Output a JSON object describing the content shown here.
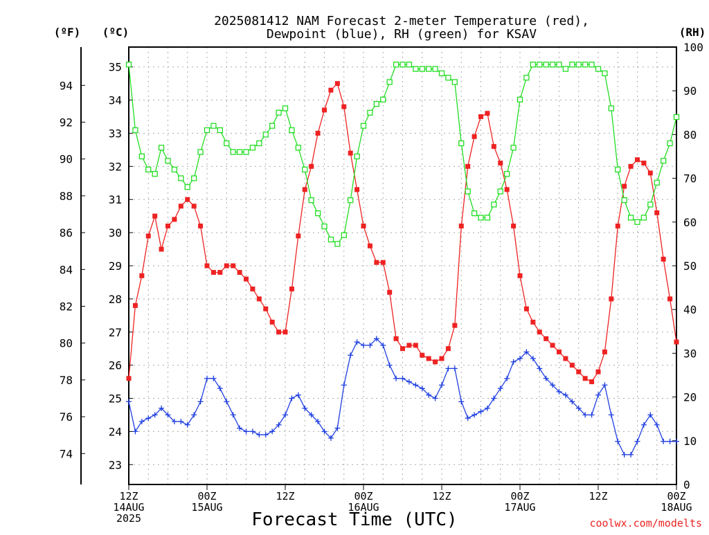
{
  "chart_data": {
    "type": "line",
    "title": "2025081412 NAM Forecast 2-meter Temperature (red),",
    "subtitle": "Dewpoint (blue), RH (green) for KSAV",
    "xlabel": "Forecast Time (UTC)",
    "unit_labels": {
      "fahrenheit": "(ºF)",
      "celsius": "(ºC)",
      "rh": "(RH)"
    },
    "credit": "coolwx.com/modelts",
    "x_ticks": [
      {
        "hour": 0,
        "lines": [
          "12Z",
          "14AUG",
          "2025"
        ]
      },
      {
        "hour": 12,
        "lines": [
          "00Z",
          "15AUG"
        ]
      },
      {
        "hour": 24,
        "lines": [
          "12Z"
        ]
      },
      {
        "hour": 36,
        "lines": [
          "00Z",
          "16AUG"
        ]
      },
      {
        "hour": 48,
        "lines": [
          "12Z"
        ]
      },
      {
        "hour": 60,
        "lines": [
          "00Z",
          "17AUG"
        ]
      },
      {
        "hour": 72,
        "lines": [
          "12Z"
        ]
      },
      {
        "hour": 84,
        "lines": [
          "00Z",
          "18AUG"
        ]
      }
    ],
    "xlim": [
      0,
      84
    ],
    "ylim_celsius": [
      22.4,
      35.6
    ],
    "y_ticks_celsius": [
      23,
      24,
      25,
      26,
      27,
      28,
      29,
      30,
      31,
      32,
      33,
      34,
      35
    ],
    "y_ticks_fahrenheit": [
      74,
      76,
      78,
      80,
      82,
      84,
      86,
      88,
      90,
      92,
      94
    ],
    "ylim_rh": [
      0,
      100
    ],
    "y_ticks_rh": [
      0,
      10,
      20,
      30,
      40,
      50,
      60,
      70,
      80,
      90,
      100
    ],
    "grid": true,
    "colors": {
      "temperature": "#ee2222",
      "dewpoint": "#1e3ee0",
      "rh": "#22dd22",
      "grid": "#aaaaaa",
      "credit": "#ee2222"
    },
    "series": [
      {
        "name": "Temperature",
        "axis": "celsius",
        "marker": "filled-square",
        "x": [
          0,
          1,
          2,
          3,
          4,
          5,
          6,
          7,
          8,
          9,
          10,
          11,
          12,
          13,
          14,
          15,
          16,
          17,
          18,
          19,
          20,
          21,
          22,
          23,
          24,
          25,
          26,
          27,
          28,
          29,
          30,
          31,
          32,
          33,
          34,
          35,
          36,
          37,
          38,
          39,
          40,
          41,
          42,
          43,
          44,
          45,
          46,
          47,
          48,
          49,
          50,
          51,
          52,
          53,
          54,
          55,
          56,
          57,
          58,
          59,
          60,
          61,
          62,
          63,
          64,
          65,
          66,
          67,
          68,
          69,
          70,
          71,
          72,
          73,
          74,
          75,
          76,
          77,
          78,
          79,
          80,
          81,
          82,
          83,
          84
        ],
        "values": [
          25.6,
          27.8,
          28.7,
          29.9,
          30.5,
          29.5,
          30.2,
          30.4,
          30.8,
          31.0,
          30.8,
          30.2,
          29.0,
          28.8,
          28.8,
          29.0,
          29.0,
          28.8,
          28.6,
          28.3,
          28.0,
          27.7,
          27.3,
          27.0,
          27.0,
          28.3,
          29.9,
          31.3,
          32.0,
          33.0,
          33.7,
          34.3,
          34.5,
          33.8,
          32.4,
          31.3,
          30.2,
          29.6,
          29.1,
          29.1,
          28.2,
          26.8,
          26.5,
          26.6,
          26.6,
          26.3,
          26.2,
          26.1,
          26.2,
          26.5,
          27.2,
          30.2,
          32.0,
          32.9,
          33.5,
          33.6,
          32.6,
          32.1,
          31.3,
          30.2,
          28.7,
          27.7,
          27.3,
          27.0,
          26.8,
          26.6,
          26.4,
          26.2,
          26.0,
          25.8,
          25.6,
          25.5,
          25.8,
          26.4,
          28.0,
          30.2,
          31.4,
          32.0,
          32.2,
          32.1,
          31.8,
          30.6,
          29.2,
          28.0,
          26.7
        ]
      },
      {
        "name": "Dewpoint",
        "axis": "celsius",
        "marker": "plus",
        "x": [
          0,
          1,
          2,
          3,
          4,
          5,
          6,
          7,
          8,
          9,
          10,
          11,
          12,
          13,
          14,
          15,
          16,
          17,
          18,
          19,
          20,
          21,
          22,
          23,
          24,
          25,
          26,
          27,
          28,
          29,
          30,
          31,
          32,
          33,
          34,
          35,
          36,
          37,
          38,
          39,
          40,
          41,
          42,
          43,
          44,
          45,
          46,
          47,
          48,
          49,
          50,
          51,
          52,
          53,
          54,
          55,
          56,
          57,
          58,
          59,
          60,
          61,
          62,
          63,
          64,
          65,
          66,
          67,
          68,
          69,
          70,
          71,
          72,
          73,
          74,
          75,
          76,
          77,
          78,
          79,
          80,
          81,
          82,
          83,
          84
        ],
        "values": [
          24.9,
          24.0,
          24.3,
          24.4,
          24.5,
          24.7,
          24.5,
          24.3,
          24.3,
          24.2,
          24.5,
          24.9,
          25.6,
          25.6,
          25.3,
          24.9,
          24.5,
          24.1,
          24.0,
          24.0,
          23.9,
          23.9,
          24.0,
          24.2,
          24.5,
          25.0,
          25.1,
          24.7,
          24.5,
          24.3,
          24.0,
          23.8,
          24.1,
          25.4,
          26.3,
          26.7,
          26.6,
          26.6,
          26.8,
          26.6,
          26.0,
          25.6,
          25.6,
          25.5,
          25.4,
          25.3,
          25.1,
          25.0,
          25.4,
          25.9,
          25.9,
          24.9,
          24.4,
          24.5,
          24.6,
          24.7,
          25.0,
          25.3,
          25.6,
          26.1,
          26.2,
          26.4,
          26.2,
          25.9,
          25.6,
          25.4,
          25.2,
          25.1,
          24.9,
          24.7,
          24.5,
          24.5,
          25.1,
          25.4,
          24.5,
          23.7,
          23.3,
          23.3,
          23.7,
          24.2,
          24.5,
          24.2,
          23.7,
          23.7,
          23.7
        ]
      },
      {
        "name": "RH",
        "axis": "rh",
        "marker": "open-square",
        "x": [
          0,
          1,
          2,
          3,
          4,
          5,
          6,
          7,
          8,
          9,
          10,
          11,
          12,
          13,
          14,
          15,
          16,
          17,
          18,
          19,
          20,
          21,
          22,
          23,
          24,
          25,
          26,
          27,
          28,
          29,
          30,
          31,
          32,
          33,
          34,
          35,
          36,
          37,
          38,
          39,
          40,
          41,
          42,
          43,
          44,
          45,
          46,
          47,
          48,
          49,
          50,
          51,
          52,
          53,
          54,
          55,
          56,
          57,
          58,
          59,
          60,
          61,
          62,
          63,
          64,
          65,
          66,
          67,
          68,
          69,
          70,
          71,
          72,
          73,
          74,
          75,
          76,
          77,
          78,
          79,
          80,
          81,
          82,
          83,
          84
        ],
        "values": [
          96,
          81,
          75,
          72,
          71,
          77,
          74,
          72,
          70,
          68,
          70,
          76,
          81,
          82,
          81,
          78,
          76,
          76,
          76,
          77,
          78,
          80,
          82,
          85,
          86,
          81,
          77,
          72,
          65,
          62,
          59,
          56,
          55,
          57,
          65,
          75,
          82,
          85,
          87,
          88,
          92,
          96,
          96,
          96,
          95,
          95,
          95,
          95,
          94,
          93,
          92,
          78,
          67,
          62,
          61,
          61,
          64,
          67,
          71,
          77,
          88,
          93,
          96,
          96,
          96,
          96,
          96,
          95,
          96,
          96,
          96,
          96,
          95,
          94,
          86,
          72,
          65,
          61,
          60,
          61,
          64,
          69,
          74,
          78,
          84
        ]
      }
    ]
  }
}
